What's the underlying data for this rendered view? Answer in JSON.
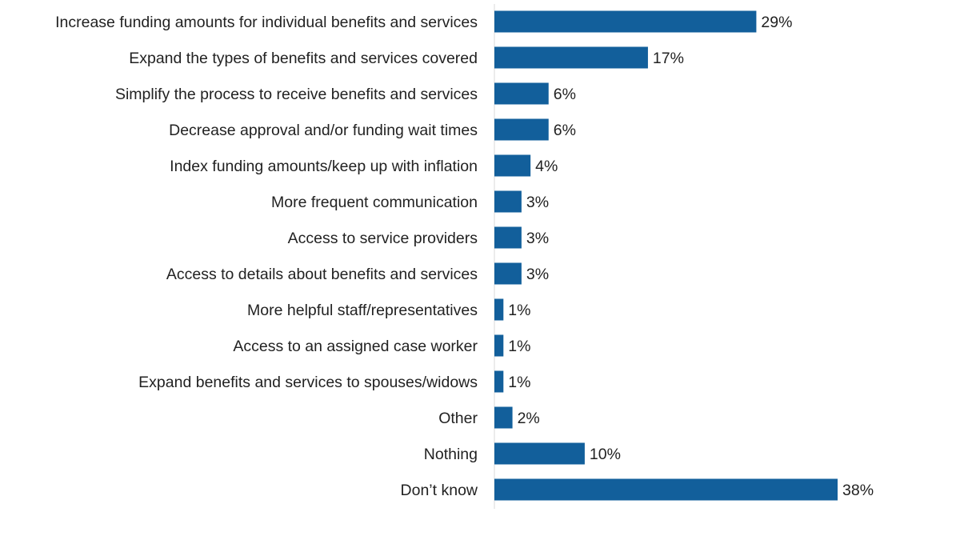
{
  "chart_data": {
    "type": "bar",
    "orientation": "horizontal",
    "categories": [
      "Increase funding amounts for individual benefits and services",
      "Expand the types of benefits and services covered",
      "Simplify the process to receive benefits and services",
      "Decrease approval and/or funding wait times",
      "Index funding amounts/keep up with inflation",
      "More frequent communication",
      "Access to service providers",
      "Access to details about benefits and services",
      "More helpful staff/representatives",
      "Access to an assigned case worker",
      "Expand benefits and services to spouses/widows",
      "Other",
      "Nothing",
      "Don’t know"
    ],
    "values": [
      29,
      17,
      6,
      6,
      4,
      3,
      3,
      3,
      1,
      1,
      1,
      2,
      10,
      38
    ],
    "value_labels": [
      "29%",
      "17%",
      "6%",
      "6%",
      "4%",
      "3%",
      "3%",
      "3%",
      "1%",
      "1%",
      "1%",
      "2%",
      "10%",
      "38%"
    ],
    "unit": "%",
    "xlim": [
      0,
      38
    ],
    "grid": false,
    "legend": "none",
    "bar_color": "#125F9B",
    "axis_color": "#D9D9D9"
  }
}
